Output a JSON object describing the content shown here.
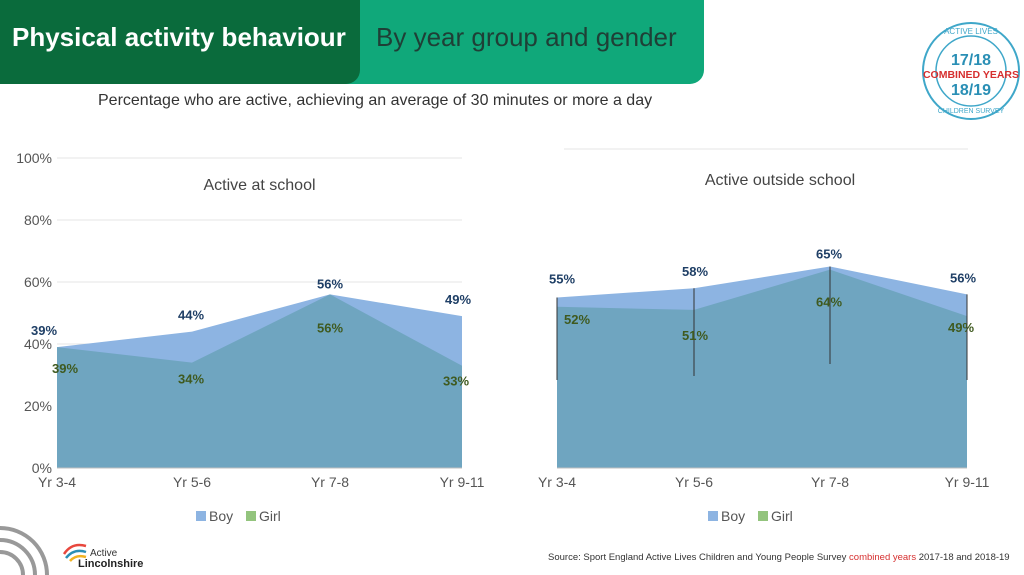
{
  "header": {
    "title": "Physical activity behaviour",
    "subtitle": "By year group and gender"
  },
  "subtitle": "Percentage who are active, achieving an average of 30 minutes or more a day",
  "badge": {
    "top": "ACTIVE LIVES",
    "year1": "17/18",
    "middle": "COMBINED YEARS",
    "year2": "18/19",
    "bottom": "CHILDREN SURVEY"
  },
  "logo": {
    "line1": "Active",
    "line2": "Lincolnshire"
  },
  "source": {
    "prefix": "Source: Sport England Active Lives Children and Young People Survey ",
    "highlight": "combined years",
    "suffix": " 2017-18 and 2018-19"
  },
  "colors": {
    "boy": "#8db4e2",
    "girl": "#93c47d",
    "overlap": "#6fa5c0",
    "boy_label": "#1f3f66",
    "girl_label": "#3f5a1f"
  },
  "chart_data": [
    {
      "type": "area",
      "title": "Active at school",
      "categories": [
        "Yr 3-4",
        "Yr 5-6",
        "Yr 7-8",
        "Yr 9-11"
      ],
      "series": [
        {
          "name": "Boy",
          "values": [
            39,
            44,
            56,
            49
          ]
        },
        {
          "name": "Girl",
          "values": [
            39,
            34,
            56,
            33
          ]
        }
      ],
      "ylim": [
        0,
        100
      ],
      "yticks": [
        "0%",
        "20%",
        "40%",
        "60%",
        "80%",
        "100%"
      ],
      "grid": true,
      "legend": "bottom"
    },
    {
      "type": "area",
      "title": "Active outside school",
      "categories": [
        "Yr 3-4",
        "Yr 5-6",
        "Yr 7-8",
        "Yr 9-11"
      ],
      "series": [
        {
          "name": "Boy",
          "values": [
            55,
            58,
            65,
            56
          ]
        },
        {
          "name": "Girl",
          "values": [
            52,
            51,
            64,
            49
          ]
        }
      ],
      "ylim": [
        0,
        100
      ],
      "grid": false,
      "legend": "bottom"
    }
  ]
}
